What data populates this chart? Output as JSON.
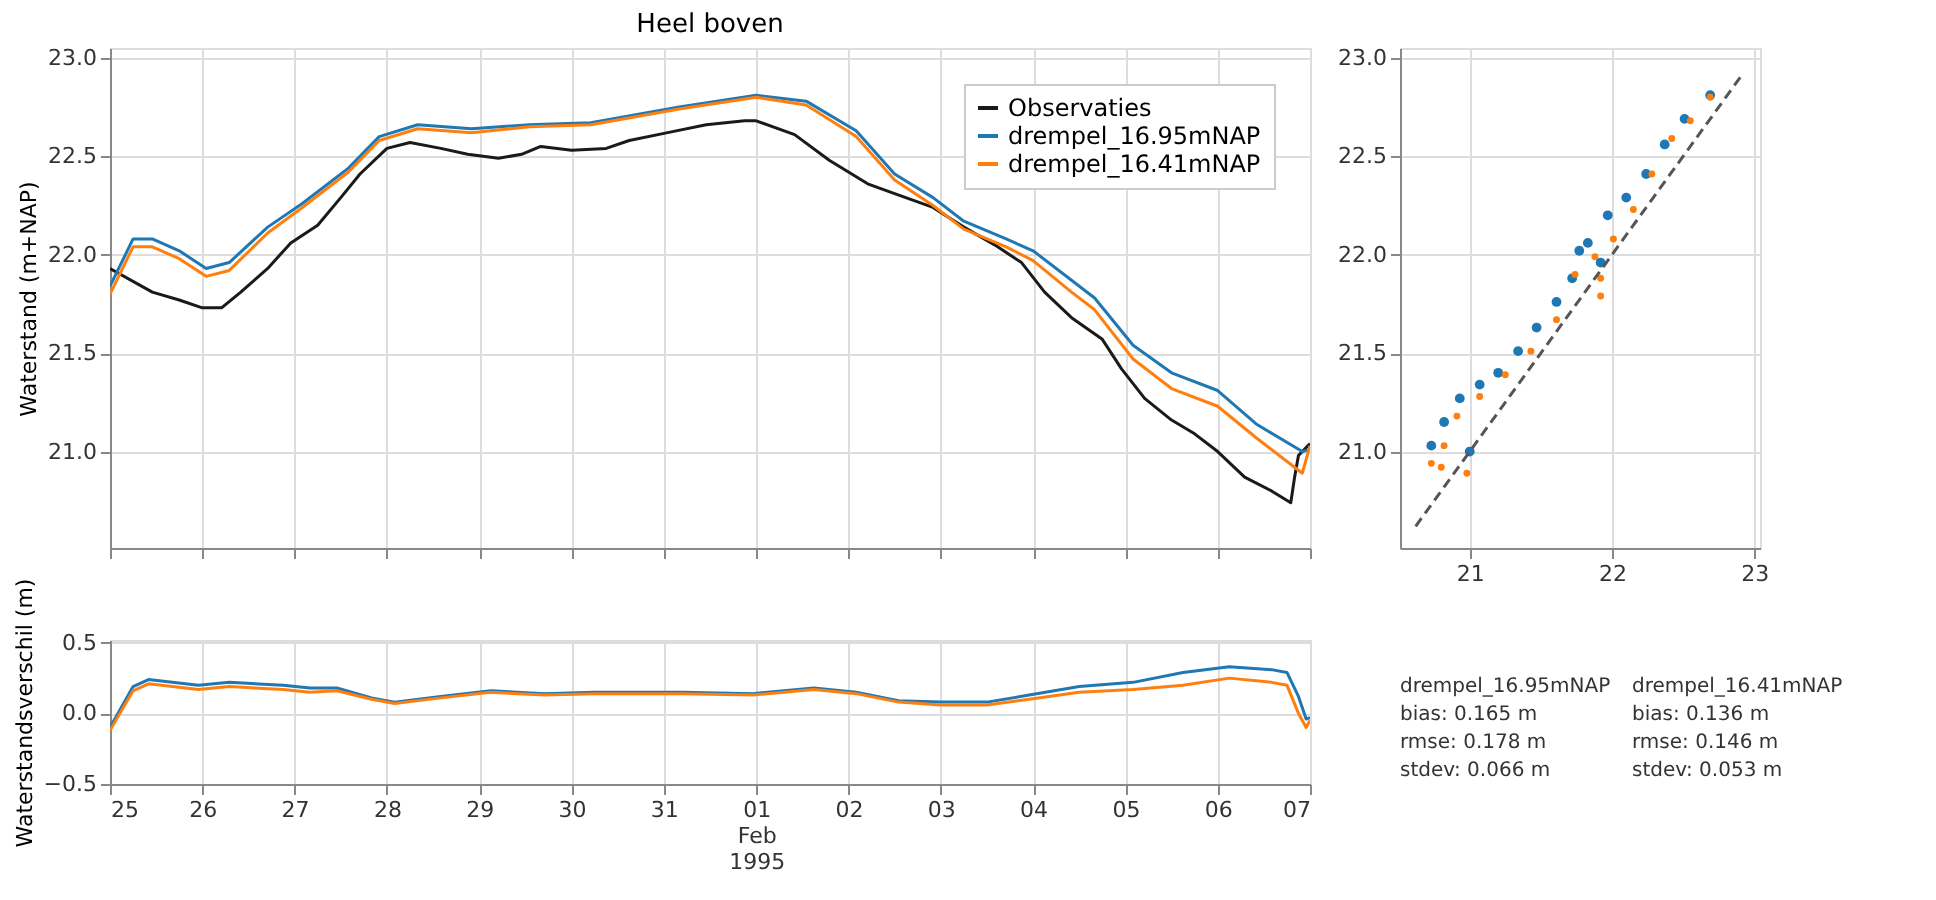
{
  "chart_data": [
    {
      "type": "line",
      "title": "Heel boven",
      "ylabel": "Waterstand (m+NAP)",
      "legend": "top right",
      "grid": true,
      "tick_labels": "y",
      "xlim": [
        "1995-01-25T00:00",
        "1995-02-07T00:00"
      ],
      "xticks": [
        {
          "value": "1995-01-25",
          "label": null
        },
        {
          "value": "1995-01-26",
          "label": null
        },
        {
          "value": "1995-01-27",
          "label": null
        },
        {
          "value": "1995-01-28",
          "label": null
        },
        {
          "value": "1995-01-29",
          "label": null
        },
        {
          "value": "1995-01-30",
          "label": null
        },
        {
          "value": "1995-01-31",
          "label": null
        },
        {
          "value": "1995-02-01",
          "label": null
        },
        {
          "value": "1995-02-02",
          "label": null
        },
        {
          "value": "1995-02-03",
          "label": null
        },
        {
          "value": "1995-02-04",
          "label": null
        },
        {
          "value": "1995-02-05",
          "label": null
        },
        {
          "value": "1995-02-06",
          "label": null
        },
        {
          "value": "1995-02-07",
          "label": null
        }
      ],
      "ylim": [
        20.51,
        23.05
      ],
      "yticks": [
        {
          "value": 21,
          "label": "21.0"
        },
        {
          "value": 21.5,
          "label": "21.5"
        },
        {
          "value": 22,
          "label": "22.0"
        },
        {
          "value": 22.5,
          "label": "22.5"
        },
        {
          "value": 23,
          "label": "23.0"
        }
      ],
      "series": [
        {
          "name": "Observaties",
          "color": "#1a1a1a",
          "x": [
            "1995-01-25T00:00",
            "1995-01-25T11:00",
            "1995-01-25T18:00",
            "1995-01-26T00:00",
            "1995-01-26T05:00",
            "1995-01-26T10:00",
            "1995-01-26T17:00",
            "1995-01-26T23:00",
            "1995-01-27T06:00",
            "1995-01-27T12:00",
            "1995-01-27T17:00",
            "1995-01-28T00:00",
            "1995-01-28T06:00",
            "1995-01-28T14:00",
            "1995-01-28T21:00",
            "1995-01-29T05:00",
            "1995-01-29T11:00",
            "1995-01-29T16:00",
            "1995-01-30T00:00",
            "1995-01-30T09:00",
            "1995-01-30T15:00",
            "1995-01-31T01:00",
            "1995-01-31T11:00",
            "1995-01-31T21:00",
            "1995-02-01T00:00",
            "1995-02-01T10:00",
            "1995-02-01T19:00",
            "1995-02-02T05:00",
            "1995-02-02T12:00",
            "1995-02-02T22:00",
            "1995-02-03T06:00",
            "1995-02-03T14:00",
            "1995-02-03T21:00",
            "1995-02-04T03:00",
            "1995-02-04T10:00",
            "1995-02-04T18:00",
            "1995-02-04T23:00",
            "1995-02-05T05:00",
            "1995-02-05T12:00",
            "1995-02-05T18:00",
            "1995-02-06T00:00",
            "1995-02-06T07:00",
            "1995-02-06T14:00",
            "1995-02-06T19:00",
            "1995-02-06T20:00",
            "1995-02-06T21:00",
            "1995-02-07T00:00"
          ],
          "values": [
            21.93,
            21.81,
            21.77,
            21.73,
            21.73,
            21.81,
            21.93,
            22.06,
            22.15,
            22.29,
            22.41,
            22.54,
            22.57,
            22.54,
            22.51,
            22.49,
            22.51,
            22.55,
            22.53,
            22.54,
            22.58,
            22.62,
            22.66,
            22.68,
            22.68,
            22.61,
            22.48,
            22.36,
            22.31,
            22.24,
            22.14,
            22.05,
            21.96,
            21.81,
            21.68,
            21.57,
            21.42,
            21.27,
            21.16,
            21.09,
            21.0,
            20.87,
            20.8,
            20.74,
            20.87,
            20.98,
            21.04
          ]
        },
        {
          "name": "drempel_16.95mNAP",
          "color": "#1f77b4",
          "x": [
            "1995-01-25T00:00",
            "1995-01-25T06:00",
            "1995-01-25T11:00",
            "1995-01-25T18:00",
            "1995-01-26T01:00",
            "1995-01-26T07:00",
            "1995-01-26T17:00",
            "1995-01-27T02:00",
            "1995-01-27T14:00",
            "1995-01-27T22:00",
            "1995-01-28T08:00",
            "1995-01-28T22:00",
            "1995-01-29T13:00",
            "1995-01-30T05:00",
            "1995-01-31T04:00",
            "1995-02-01T00:00",
            "1995-02-01T13:00",
            "1995-02-02T02:00",
            "1995-02-02T12:00",
            "1995-02-02T22:00",
            "1995-02-03T06:00",
            "1995-02-03T17:00",
            "1995-02-04T00:00",
            "1995-02-04T10:00",
            "1995-02-04T16:00",
            "1995-02-05T02:00",
            "1995-02-05T12:00",
            "1995-02-06T00:00",
            "1995-02-06T10:00",
            "1995-02-06T22:00",
            "1995-02-07T00:00"
          ],
          "values": [
            21.84,
            22.08,
            22.08,
            22.02,
            21.93,
            21.96,
            22.14,
            22.26,
            22.44,
            22.6,
            22.66,
            22.64,
            22.66,
            22.67,
            22.75,
            22.81,
            22.78,
            22.63,
            22.41,
            22.29,
            22.17,
            22.08,
            22.02,
            21.87,
            21.78,
            21.54,
            21.4,
            21.31,
            21.14,
            21.0,
            21.01
          ]
        },
        {
          "name": "drempel_16.41mNAP",
          "color": "#ff7f0e",
          "x": [
            "1995-01-25T00:00",
            "1995-01-25T06:00",
            "1995-01-25T11:00",
            "1995-01-25T18:00",
            "1995-01-26T01:00",
            "1995-01-26T07:00",
            "1995-01-26T17:00",
            "1995-01-27T02:00",
            "1995-01-27T14:00",
            "1995-01-27T22:00",
            "1995-01-28T08:00",
            "1995-01-28T22:00",
            "1995-01-29T13:00",
            "1995-01-30T05:00",
            "1995-01-31T04:00",
            "1995-02-01T00:00",
            "1995-02-01T13:00",
            "1995-02-02T02:00",
            "1995-02-02T12:00",
            "1995-02-02T22:00",
            "1995-02-03T06:00",
            "1995-02-03T17:00",
            "1995-02-04T00:00",
            "1995-02-04T10:00",
            "1995-02-04T16:00",
            "1995-02-05T02:00",
            "1995-02-05T12:00",
            "1995-02-06T00:00",
            "1995-02-06T10:00",
            "1995-02-06T22:00",
            "1995-02-07T00:00"
          ],
          "values": [
            21.8,
            22.04,
            22.04,
            21.98,
            21.89,
            21.92,
            22.11,
            22.24,
            22.42,
            22.58,
            22.64,
            22.62,
            22.65,
            22.66,
            22.74,
            22.8,
            22.76,
            22.6,
            22.38,
            22.25,
            22.13,
            22.04,
            21.97,
            21.81,
            21.72,
            21.47,
            21.32,
            21.23,
            21.07,
            20.89,
            21.03
          ]
        }
      ]
    },
    {
      "type": "line",
      "ylabel": "Waterstandsverschil (m)",
      "grid": true,
      "xlim": [
        "1995-01-25T00:00",
        "1995-02-07T00:00"
      ],
      "xticks": [
        {
          "value": "1995-01-25",
          "label": "25"
        },
        {
          "value": "1995-01-26",
          "label": "26"
        },
        {
          "value": "1995-01-27",
          "label": "27"
        },
        {
          "value": "1995-01-28",
          "label": "28"
        },
        {
          "value": "1995-01-29",
          "label": "29"
        },
        {
          "value": "1995-01-30",
          "label": "30"
        },
        {
          "value": "1995-01-31",
          "label": "31"
        },
        {
          "value": "1995-02-01",
          "label": "01\nFeb\n1995"
        },
        {
          "value": "1995-02-02",
          "label": "02"
        },
        {
          "value": "1995-02-03",
          "label": "03"
        },
        {
          "value": "1995-02-04",
          "label": "04"
        },
        {
          "value": "1995-02-05",
          "label": "05"
        },
        {
          "value": "1995-02-06",
          "label": "06"
        },
        {
          "value": "1995-02-07",
          "label": "07"
        }
      ],
      "ylim": [
        -0.5,
        0.52
      ],
      "yticks": [
        {
          "value": -0.5,
          "label": "−0.5"
        },
        {
          "value": 0,
          "label": "0.0"
        },
        {
          "value": 0.5,
          "label": "0.5"
        }
      ],
      "x": [
        "1995-01-25T00:00",
        "1995-01-25T06:00",
        "1995-01-25T10:00",
        "1995-01-25T23:00",
        "1995-01-26T07:00",
        "1995-01-26T21:00",
        "1995-01-27T04:00",
        "1995-01-27T11:00",
        "1995-01-27T20:00",
        "1995-01-28T02:00",
        "1995-01-28T14:00",
        "1995-01-29T03:00",
        "1995-01-29T17:00",
        "1995-01-30T06:00",
        "1995-01-31T05:00",
        "1995-01-31T23:00",
        "1995-02-01T15:00",
        "1995-02-02T02:00",
        "1995-02-02T13:00",
        "1995-02-03T00:00",
        "1995-02-03T12:00",
        "1995-02-03T23:00",
        "1995-02-04T12:00",
        "1995-02-05T02:00",
        "1995-02-05T15:00",
        "1995-02-06T03:00",
        "1995-02-06T14:00",
        "1995-02-06T18:00",
        "1995-02-06T21:00",
        "1995-02-06T23:00",
        "1995-02-07T00:00"
      ],
      "series": [
        {
          "color": "#1f77b4",
          "values": [
            -0.1,
            0.19,
            0.24,
            0.2,
            0.22,
            0.2,
            0.18,
            0.18,
            0.11,
            0.08,
            0.12,
            0.16,
            0.14,
            0.15,
            0.15,
            0.14,
            0.18,
            0.15,
            0.09,
            0.08,
            0.08,
            0.13,
            0.19,
            0.22,
            0.29,
            0.33,
            0.31,
            0.29,
            0.12,
            -0.04,
            -0.03
          ]
        },
        {
          "color": "#ff7f0e",
          "values": [
            -0.12,
            0.16,
            0.21,
            0.17,
            0.19,
            0.17,
            0.15,
            0.16,
            0.1,
            0.07,
            0.11,
            0.15,
            0.13,
            0.14,
            0.14,
            0.13,
            0.17,
            0.14,
            0.08,
            0.06,
            0.06,
            0.1,
            0.15,
            0.17,
            0.2,
            0.25,
            0.22,
            0.2,
            0.0,
            -0.1,
            -0.05
          ]
        }
      ]
    },
    {
      "type": "scatter",
      "grid": true,
      "marker": "circle",
      "xlim": [
        20.51,
        23.04
      ],
      "xticks": [
        21,
        22,
        23
      ],
      "ylim": [
        20.51,
        23.05
      ],
      "yticks": [
        {
          "value": 21,
          "label": "21.0"
        },
        {
          "value": 21.5,
          "label": "21.5"
        },
        {
          "value": 22,
          "label": "22.0"
        },
        {
          "value": 22.5,
          "label": "22.5"
        },
        {
          "value": 23,
          "label": "23.0"
        }
      ],
      "series": [
        {
          "color": "#1f77b4",
          "x": [
            20.73,
            20.82,
            20.93,
            21.07,
            21.2,
            21.34,
            21.47,
            21.61,
            21.72,
            21.77,
            21.83,
            21.97,
            22.1,
            22.24,
            22.37,
            22.51,
            22.69,
            21.0,
            21.92
          ],
          "values": [
            21.03,
            21.15,
            21.27,
            21.34,
            21.4,
            21.51,
            21.63,
            21.76,
            21.88,
            22.02,
            22.06,
            22.2,
            22.29,
            22.41,
            22.56,
            22.69,
            22.81,
            21.0,
            21.96
          ]
        },
        {
          "color": "#ff7f0e",
          "x": [
            20.73,
            20.82,
            20.91,
            21.07,
            21.25,
            21.43,
            21.61,
            21.74,
            21.88,
            22.01,
            22.15,
            22.28,
            22.42,
            22.55,
            22.69,
            20.8,
            20.98,
            21.92,
            21.92
          ],
          "values": [
            20.94,
            21.03,
            21.18,
            21.28,
            21.39,
            21.51,
            21.67,
            21.9,
            21.99,
            22.08,
            22.23,
            22.41,
            22.59,
            22.68,
            22.8,
            20.92,
            20.89,
            21.79,
            21.88
          ]
        },
        {
          "type": "line",
          "line_style": "dashed",
          "marker": "none",
          "color": "#555555",
          "x": [
            20.62,
            22.91
          ],
          "values": [
            20.62,
            22.91
          ]
        }
      ]
    },
    {
      "type": "other",
      "annotations": [
        "drempel_16.95mNAP",
        "bias: 0.165 m",
        "rmse: 0.178 m",
        "stdev: 0.066 m",
        "drempel_16.41mNAP",
        "bias: 0.136 m",
        "rmse: 0.146 m",
        "stdev: 0.053 m"
      ]
    }
  ]
}
